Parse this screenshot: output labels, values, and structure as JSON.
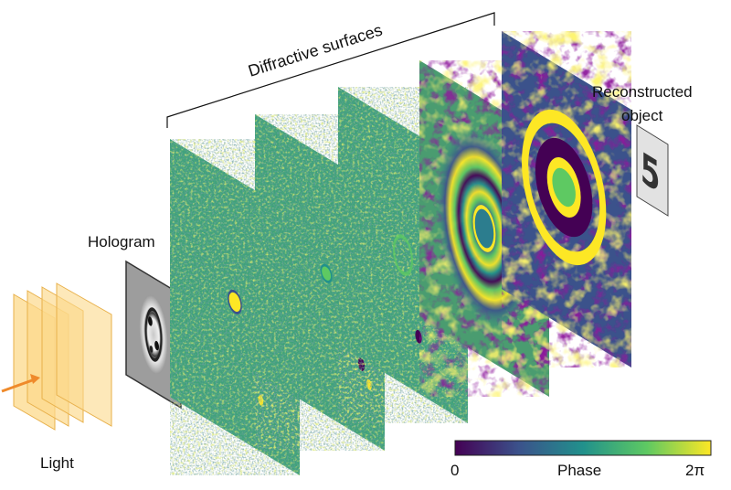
{
  "diagram": {
    "labels": {
      "light": "Light",
      "hologram": "Hologram",
      "diffractive_surfaces": "Diffractive surfaces",
      "reconstructed_object_line1": "Reconstructed",
      "reconstructed_object_line2": "object"
    },
    "colorbar": {
      "min_label": "0",
      "title": "Phase",
      "max_label": "2π",
      "colormap": [
        "#440154",
        "#3b528b",
        "#21918c",
        "#5ec962",
        "#fde725"
      ]
    },
    "reconstructed_digit": "5",
    "colors": {
      "light_plane_fill": "#fcd98b",
      "light_plane_stroke": "#e8b04a",
      "arrow": "#ef8a2b",
      "phase_base": "#3fa27a"
    },
    "diffractive_surface_count": 5
  }
}
